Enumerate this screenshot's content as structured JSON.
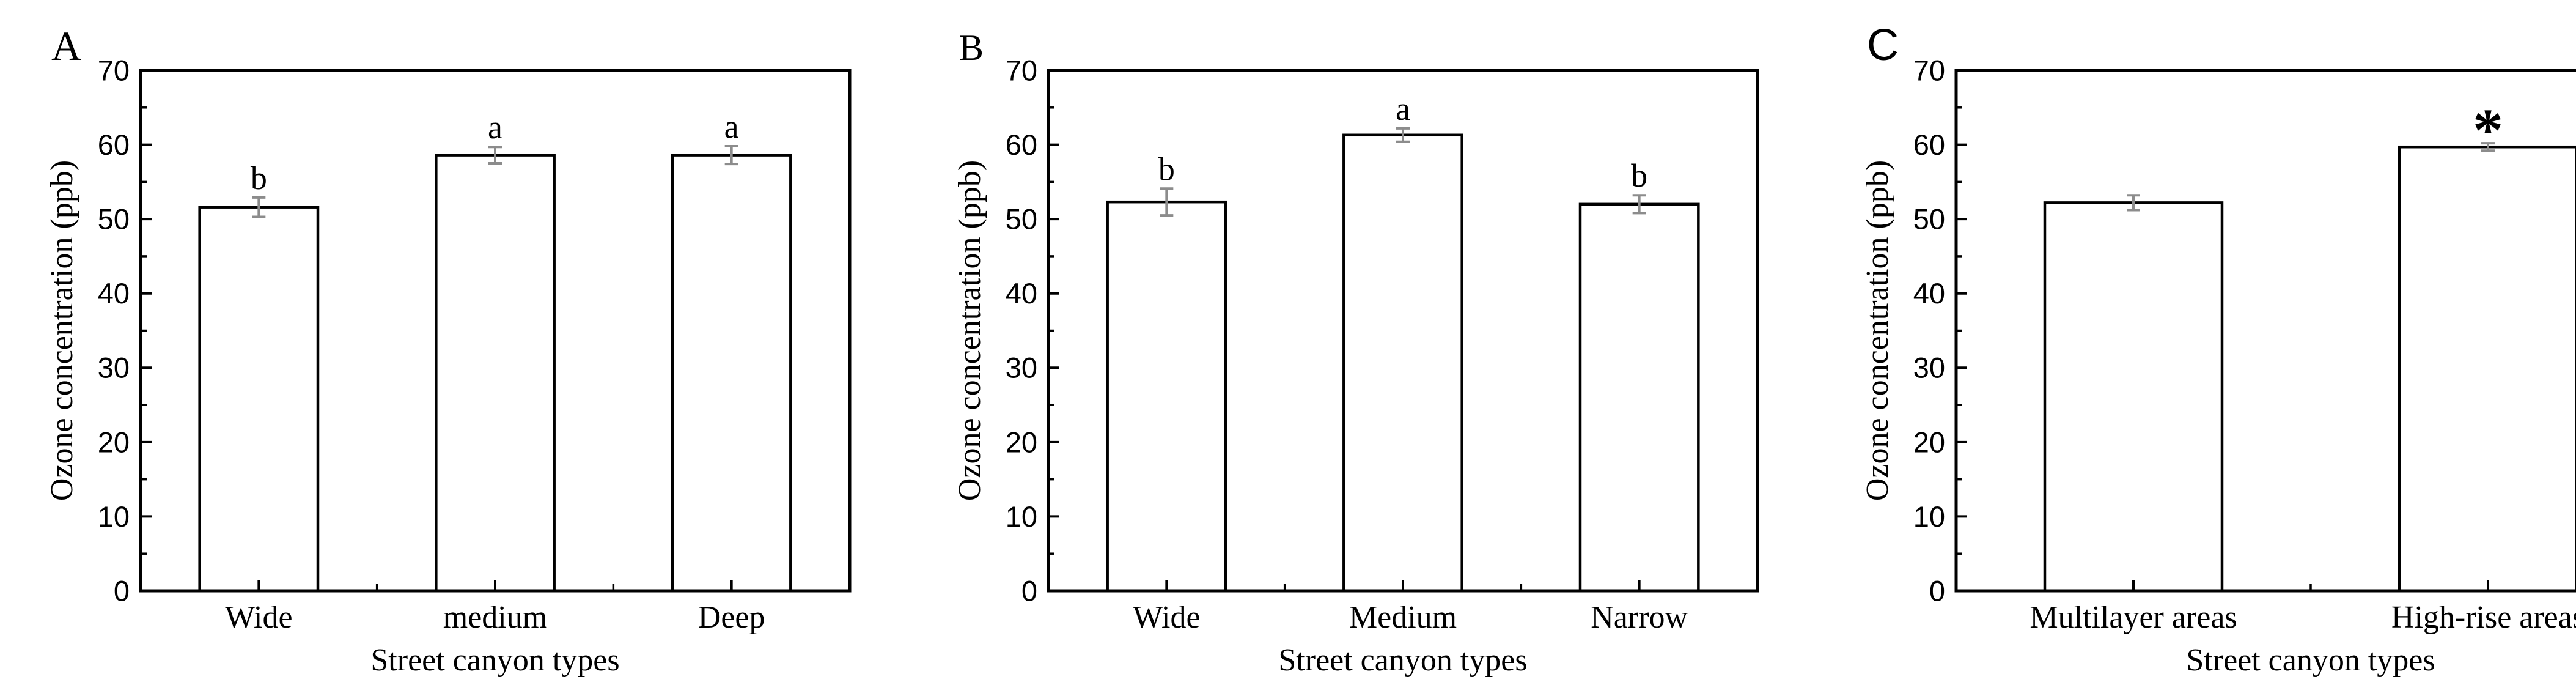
{
  "figure": {
    "background": "#ffffff",
    "axis_color": "#000000",
    "bar_fill": "#ffffff",
    "bar_stroke": "#000000",
    "error_bar_color": "#8c8c8c",
    "text_color": "#000000"
  },
  "chart_data": [
    {
      "type": "bar",
      "panel_label": "A",
      "title": "",
      "xlabel": "Street canyon types",
      "ylabel": "Ozone concentration (ppb)",
      "categories": [
        "Wide",
        "medium",
        "Deep"
      ],
      "values": [
        51.6,
        58.6,
        58.6
      ],
      "errors": [
        1.3,
        1.1,
        1.2
      ],
      "sig_labels": [
        "b",
        "a",
        "a"
      ],
      "ylim": [
        0,
        70
      ],
      "yticks": [
        0,
        10,
        20,
        30,
        40,
        50,
        60,
        70
      ],
      "yminor_step": 5,
      "grid": false,
      "legend": "none",
      "layout_hints": {
        "letter_font": "serif",
        "letter_size": 68,
        "bar_width_frac": 0.5
      }
    },
    {
      "type": "bar",
      "panel_label": "B",
      "title": "",
      "xlabel": "Street canyon types",
      "ylabel": "Ozone concentration (ppb)",
      "categories": [
        "Wide",
        "Medium",
        "Narrow"
      ],
      "values": [
        52.3,
        61.3,
        52.0
      ],
      "errors": [
        1.8,
        0.9,
        1.2
      ],
      "sig_labels": [
        "b",
        "a",
        "b"
      ],
      "ylim": [
        0,
        70
      ],
      "yticks": [
        0,
        10,
        20,
        30,
        40,
        50,
        60,
        70
      ],
      "yminor_step": 5,
      "grid": false,
      "legend": "none",
      "layout_hints": {
        "letter_font": "serif",
        "letter_size": 60,
        "bar_width_frac": 0.5
      }
    },
    {
      "type": "bar",
      "panel_label": "C",
      "title": "",
      "xlabel": "Street canyon types",
      "ylabel": "Ozone concentration (ppb)",
      "categories": [
        "Multilayer areas",
        "High-rise areas"
      ],
      "values": [
        52.2,
        59.7
      ],
      "errors": [
        1.0,
        0.5
      ],
      "sig_labels": [
        "",
        "*"
      ],
      "ylim": [
        0,
        70
      ],
      "yticks": [
        0,
        10,
        20,
        30,
        40,
        50,
        60,
        70
      ],
      "yminor_step": 5,
      "grid": false,
      "legend": "none",
      "layout_hints": {
        "letter_font": "sans",
        "letter_size": 72,
        "bar_width_frac": 0.5
      }
    }
  ]
}
